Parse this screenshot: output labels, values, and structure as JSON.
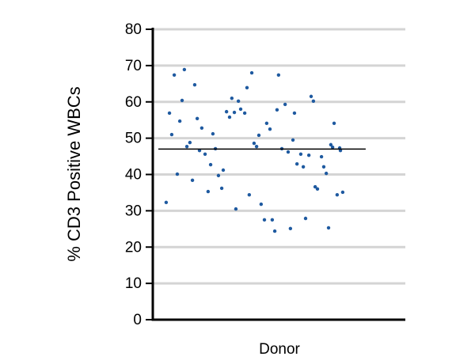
{
  "chart_data": {
    "type": "scatter",
    "y_label": "% CD3 Positive WBCs",
    "x_label": "Donor",
    "color": "#1f5aa0",
    "grid": true,
    "xlim": [
      0,
      100
    ],
    "ylim": [
      0,
      80
    ],
    "yticks": [
      0,
      10,
      20,
      30,
      40,
      50,
      60,
      70,
      80
    ],
    "mean": 47,
    "mean_x": [
      2.2,
      84.3
    ],
    "x": [
      5.3,
      6.6,
      7.5,
      8.5,
      9.7,
      10.7,
      11.6,
      12.5,
      13.5,
      14.7,
      15.7,
      16.6,
      17.6,
      18.5,
      19.4,
      20.7,
      21.9,
      22.9,
      23.8,
      24.8,
      26.0,
      27.3,
      27.9,
      29.2,
      30.4,
      31.3,
      32.3,
      32.9,
      33.9,
      34.8,
      36.4,
      37.3,
      38.2,
      39.2,
      40.1,
      41.1,
      42.0,
      42.9,
      44.2,
      45.1,
      46.4,
      47.3,
      48.3,
      49.2,
      49.8,
      51.1,
      52.4,
      53.6,
      54.5,
      55.5,
      56.1,
      57.1,
      58.6,
      59.6,
      60.5,
      61.8,
      62.7,
      63.6,
      64.3,
      65.2,
      66.8,
      67.7,
      68.7,
      69.6,
      70.5,
      71.2,
      71.8,
      73.0,
      74.0,
      74.3,
      75.2
    ],
    "values": [
      32.3,
      56.9,
      51.0,
      67.4,
      40.1,
      54.7,
      60.4,
      68.9,
      47.7,
      48.8,
      38.4,
      64.7,
      55.4,
      46.6,
      52.8,
      45.6,
      35.3,
      42.7,
      51.2,
      47.1,
      39.7,
      36.2,
      41.2,
      57.3,
      55.8,
      61.0,
      57.1,
      30.5,
      60.2,
      58.0,
      56.9,
      63.9,
      34.4,
      68.0,
      48.6,
      47.7,
      50.8,
      31.8,
      27.5,
      54.1,
      52.5,
      27.5,
      24.4,
      57.8,
      67.4,
      47.1,
      59.3,
      46.2,
      25.1,
      49.5,
      56.9,
      42.9,
      45.6,
      42.1,
      27.9,
      45.3,
      61.5,
      60.2,
      36.6,
      36.0,
      44.9,
      42.1,
      40.3,
      25.3,
      48.2,
      47.5,
      54.1,
      34.4,
      47.3,
      46.6,
      35.1
    ]
  }
}
